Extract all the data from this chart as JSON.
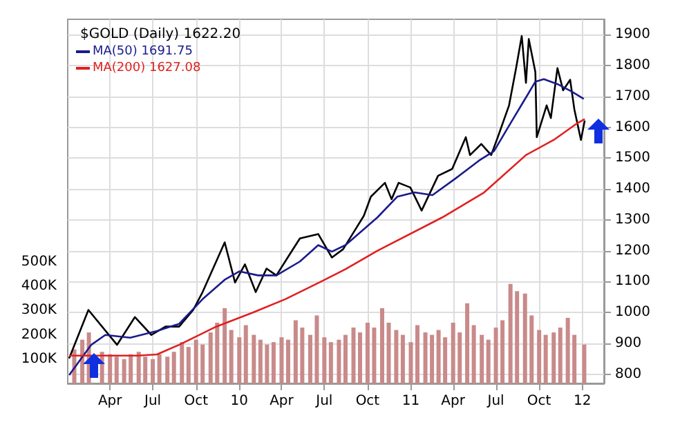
{
  "chart_data": {
    "type": "line",
    "title": "$GOLD (Daily) 1622.20",
    "legend": "top left",
    "grid": true,
    "marker": "none",
    "xlim": [
      "2009-01-01",
      "2012-02-16"
    ],
    "xticks": [
      {
        "value": "2009-04-01",
        "label": "Apr"
      },
      {
        "value": "2009-07-01",
        "label": "Jul"
      },
      {
        "value": "2009-10-01",
        "label": "Oct"
      },
      {
        "value": "2010-01-01",
        "label": "10"
      },
      {
        "value": "2010-04-01",
        "label": "Apr"
      },
      {
        "value": "2010-07-01",
        "label": "Jul"
      },
      {
        "value": "2010-10-01",
        "label": "Oct"
      },
      {
        "value": "2011-01-01",
        "label": "11"
      },
      {
        "value": "2011-04-01",
        "label": "Apr"
      },
      {
        "value": "2011-07-01",
        "label": "Jul"
      },
      {
        "value": "2011-10-01",
        "label": "Oct"
      },
      {
        "value": "2012-01-01",
        "label": "12"
      }
    ],
    "ylim": [
      770,
      1950
    ],
    "yticks": [
      800,
      900,
      1000,
      1100,
      1200,
      1300,
      1400,
      1500,
      1600,
      1700,
      1800,
      1900
    ],
    "y2lim": [
      0,
      1500000
    ],
    "y2ticks": [
      {
        "value": 100000,
        "label": "100K"
      },
      {
        "value": 200000,
        "label": "200K"
      },
      {
        "value": 300000,
        "label": "300K"
      },
      {
        "value": 400000,
        "label": "400K"
      },
      {
        "value": 500000,
        "label": "500K"
      }
    ],
    "series": [
      {
        "type": "bar",
        "axis": "y2",
        "color": "#c98a8a",
        "x": [
          "2009-01-15",
          "2009-02-01",
          "2009-02-15",
          "2009-03-01",
          "2009-03-15",
          "2009-04-01",
          "2009-04-15",
          "2009-05-01",
          "2009-05-15",
          "2009-06-01",
          "2009-06-15",
          "2009-07-01",
          "2009-07-15",
          "2009-08-01",
          "2009-08-15",
          "2009-09-01",
          "2009-09-15",
          "2009-10-01",
          "2009-10-15",
          "2009-11-01",
          "2009-11-15",
          "2009-12-01",
          "2009-12-15",
          "2010-01-01",
          "2010-01-15",
          "2010-02-01",
          "2010-02-15",
          "2010-03-01",
          "2010-03-15",
          "2010-04-01",
          "2010-04-15",
          "2010-05-01",
          "2010-05-15",
          "2010-06-01",
          "2010-06-15",
          "2010-07-01",
          "2010-07-15",
          "2010-08-01",
          "2010-08-15",
          "2010-09-01",
          "2010-09-15",
          "2010-10-01",
          "2010-10-15",
          "2010-11-01",
          "2010-11-15",
          "2010-12-01",
          "2010-12-15",
          "2011-01-01",
          "2011-01-15",
          "2011-02-01",
          "2011-02-15",
          "2011-03-01",
          "2011-03-15",
          "2011-04-01",
          "2011-04-15",
          "2011-05-01",
          "2011-05-15",
          "2011-06-01",
          "2011-06-15",
          "2011-07-01",
          "2011-07-15",
          "2011-08-01",
          "2011-08-15",
          "2011-09-01",
          "2011-09-15",
          "2011-10-01",
          "2011-10-15",
          "2011-11-01",
          "2011-11-15",
          "2011-12-01",
          "2011-12-15",
          "2012-01-05"
        ],
        "values": [
          140000,
          180000,
          210000,
          null,
          130000,
          120000,
          110000,
          100000,
          120000,
          130000,
          110000,
          100000,
          120000,
          110000,
          130000,
          170000,
          150000,
          180000,
          160000,
          210000,
          250000,
          310000,
          220000,
          190000,
          240000,
          200000,
          180000,
          160000,
          170000,
          190000,
          180000,
          260000,
          230000,
          200000,
          280000,
          190000,
          170000,
          180000,
          200000,
          230000,
          210000,
          250000,
          230000,
          310000,
          250000,
          220000,
          200000,
          170000,
          240000,
          210000,
          200000,
          220000,
          190000,
          250000,
          210000,
          330000,
          240000,
          200000,
          180000,
          230000,
          260000,
          410000,
          380000,
          370000,
          280000,
          220000,
          200000,
          210000,
          230000,
          270000,
          200000,
          160000
        ]
      },
      {
        "color": "#000000",
        "x": [
          "2009-01-04",
          "2009-02-14",
          "2009-04-16",
          "2009-05-24",
          "2009-06-28",
          "2009-07-28",
          "2009-08-26",
          "2009-09-25",
          "2009-10-15",
          "2009-12-01",
          "2009-12-23",
          "2010-01-13",
          "2010-02-05",
          "2010-02-28",
          "2010-03-21",
          "2010-04-14",
          "2010-05-10",
          "2010-06-18",
          "2010-07-17",
          "2010-08-10",
          "2010-09-23",
          "2010-10-08",
          "2010-11-07",
          "2010-11-21",
          "2010-12-06",
          "2010-12-31",
          "2011-01-24",
          "2011-02-28",
          "2011-03-30",
          "2011-04-28",
          "2011-05-07",
          "2011-05-31",
          "2011-06-21",
          "2011-07-05",
          "2011-07-29",
          "2011-08-13",
          "2011-08-25",
          "2011-09-03",
          "2011-09-09",
          "2011-09-23",
          "2011-09-26",
          "2011-10-17",
          "2011-10-26",
          "2011-11-09",
          "2011-11-21",
          "2011-12-06",
          "2011-12-15",
          "2011-12-29",
          "2012-01-06"
        ],
        "values": [
          851,
          1008,
          895,
          985,
          927,
          954,
          954,
          1008,
          1066,
          1227,
          1097,
          1156,
          1066,
          1142,
          1120,
          1178,
          1240,
          1254,
          1178,
          1205,
          1313,
          1375,
          1420,
          1367,
          1420,
          1405,
          1330,
          1443,
          1465,
          1568,
          1510,
          1546,
          1510,
          1568,
          1671,
          1792,
          1896,
          1744,
          1886,
          1779,
          1568,
          1671,
          1630,
          1792,
          1720,
          1754,
          1658,
          1559,
          1622
        ]
      },
      {
        "name": "MA(50) 1691.75",
        "color": "#1a1a8c",
        "x": [
          "2009-01-04",
          "2009-02-20",
          "2009-03-22",
          "2009-05-14",
          "2009-07-10",
          "2009-08-26",
          "2009-10-15",
          "2009-12-01",
          "2010-01-01",
          "2010-02-10",
          "2010-03-21",
          "2010-05-10",
          "2010-06-18",
          "2010-07-17",
          "2010-08-15",
          "2010-10-22",
          "2010-12-03",
          "2011-01-09",
          "2011-02-16",
          "2011-04-06",
          "2011-05-26",
          "2011-06-27",
          "2011-08-01",
          "2011-08-31",
          "2011-09-23",
          "2011-10-11",
          "2011-11-09",
          "2011-12-09",
          "2012-01-04"
        ],
        "values": [
          797,
          895,
          927,
          918,
          940,
          963,
          1043,
          1106,
          1133,
          1120,
          1120,
          1165,
          1218,
          1197,
          1218,
          1308,
          1375,
          1389,
          1380,
          1434,
          1492,
          1523,
          1613,
          1689,
          1748,
          1756,
          1740,
          1716,
          1692
        ]
      },
      {
        "name": "MA(200) 1627.08",
        "color": "#e02020",
        "x": [
          "2009-01-04",
          "2009-05-30",
          "2009-07-10",
          "2009-08-26",
          "2009-11-13",
          "2010-01-29",
          "2010-04-09",
          "2010-06-24",
          "2010-08-15",
          "2010-10-22",
          "2011-03-09",
          "2011-06-06",
          "2011-09-03",
          "2011-11-01",
          "2011-12-21",
          "2012-01-06"
        ],
        "values": [
          860,
          860,
          864,
          895,
          954,
          999,
          1043,
          1100,
          1140,
          1200,
          1308,
          1389,
          1510,
          1559,
          1613,
          1627
        ]
      }
    ]
  }
}
